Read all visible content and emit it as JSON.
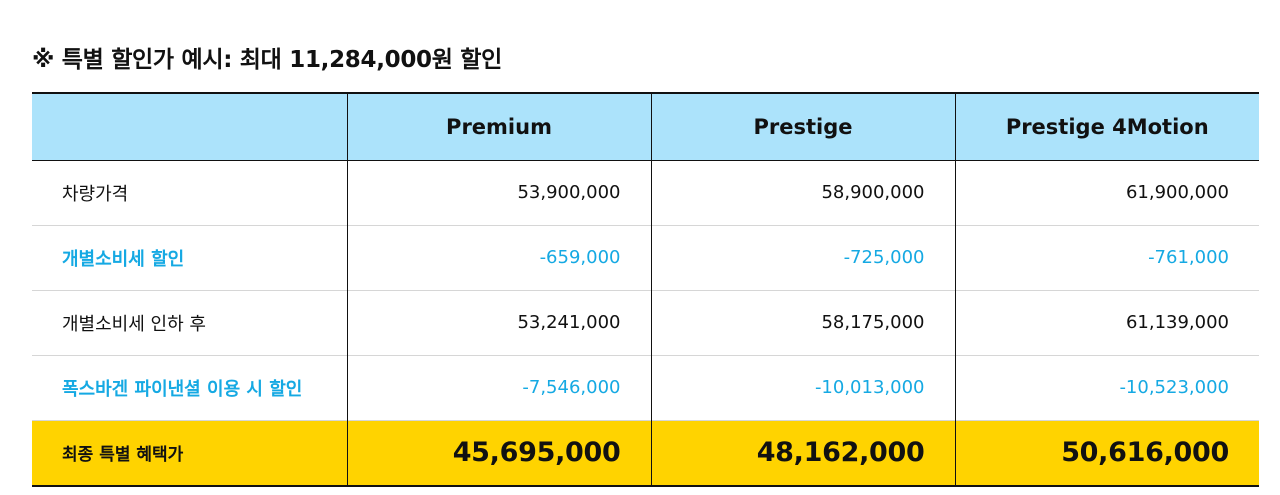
{
  "title": "※ 특별 할인가 예시: 최대 11,284,000원 할인",
  "table": {
    "columns": [
      "",
      "Premium",
      "Prestige",
      "Prestige 4Motion"
    ],
    "rows": [
      {
        "label": "차량가격",
        "values": [
          "53,900,000",
          "58,900,000",
          "61,900,000"
        ]
      },
      {
        "label": "개별소비세 할인",
        "values": [
          "-659,000",
          "-725,000",
          "-761,000"
        ]
      },
      {
        "label": "개별소비세 인하 후",
        "values": [
          "53,241,000",
          "58,175,000",
          "61,139,000"
        ]
      },
      {
        "label": "폭스바겐 파이낸셜 이용 시 할인",
        "values": [
          "-7,546,000",
          "-10,013,000",
          "-10,523,000"
        ]
      }
    ],
    "total": {
      "label": "최종 특별 혜택가",
      "values": [
        "45,695,000",
        "48,162,000",
        "50,616,000"
      ]
    }
  },
  "colors": {
    "header_bg": "#ace3fb",
    "discount_text": "#15a9e3",
    "total_bg": "#ffd300"
  }
}
